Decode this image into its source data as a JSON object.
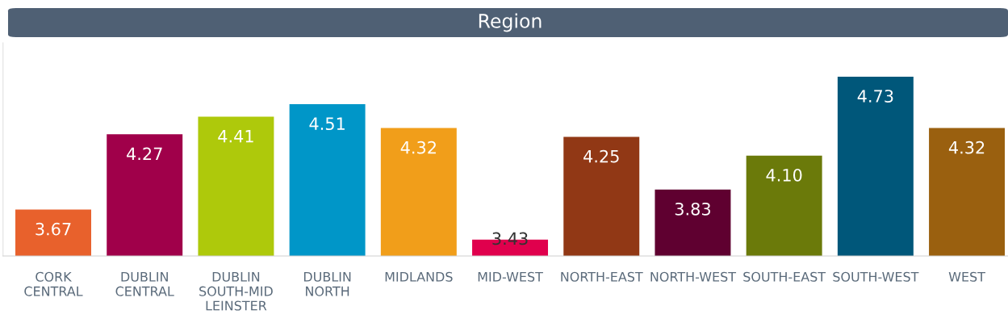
{
  "chart_data": {
    "type": "bar",
    "title": "Region",
    "categories": [
      "CORK\nCENTRAL",
      "DUBLIN\nCENTRAL",
      "DUBLIN\nSOUTH-MID\nLEINSTER",
      "DUBLIN\nNORTH",
      "MIDLANDS",
      "MID-WEST",
      "NORTH-EAST",
      "NORTH-WEST",
      "SOUTH-EAST",
      "SOUTH-WEST",
      "WEST"
    ],
    "values": [
      3.67,
      4.27,
      4.41,
      4.51,
      4.32,
      3.43,
      4.25,
      3.83,
      4.1,
      4.73,
      4.32
    ],
    "value_labels": [
      "3.67",
      "4.27",
      "4.41",
      "4.51",
      "4.32",
      "3.43",
      "4.25",
      "3.83",
      "4.10",
      "4.73",
      "4.32"
    ],
    "colors": [
      "#e8612c",
      "#a0004a",
      "#aec90b",
      "#0096c8",
      "#f19e1a",
      "#e0004d",
      "#913815",
      "#5f0030",
      "#6b7a0a",
      "#00577a",
      "#9a600f"
    ],
    "ylim": [
      3.3,
      5.0
    ],
    "tick_labels": "x",
    "grid": false,
    "legend": false
  }
}
